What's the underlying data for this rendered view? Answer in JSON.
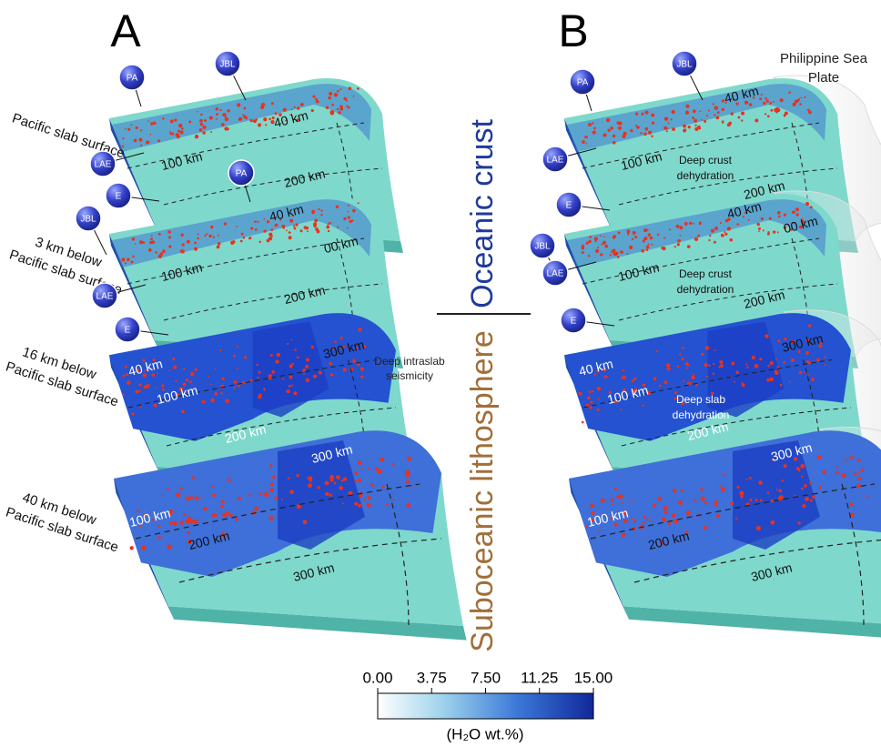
{
  "panels": [
    {
      "label": "A",
      "slabs": [
        {
          "side_label": [
            "Pacific slab surface"
          ],
          "markers": [
            "PA",
            "JBL",
            "LAE",
            "E"
          ],
          "depths": [
            "40 km",
            "100 km",
            "200 km",
            "00 km"
          ]
        },
        {
          "side_label": [
            "3 km below",
            "Pacific slab surface"
          ],
          "markers": [
            "PA",
            "JBL",
            "LAE",
            "E"
          ],
          "depths": [
            "40 km",
            "100 km",
            "200 km",
            "300 km"
          ]
        },
        {
          "side_label": [
            "16 km below",
            "Pacific slab surface"
          ],
          "depths": [
            "40 km",
            "100 km",
            "200 km",
            "300 km"
          ]
        },
        {
          "side_label": [
            "40 km below",
            "Pacific slab surface"
          ],
          "depths": [
            "100 km",
            "200 km",
            "300 km"
          ]
        }
      ],
      "annotations": [
        {
          "lines": [
            "Deep intraslab",
            "seismicity"
          ]
        }
      ]
    },
    {
      "label": "B",
      "slabs": [
        {
          "markers": [
            "PA",
            "JBL",
            "LAE",
            "E"
          ],
          "depths": [
            "40 km",
            "100 km",
            "200 km",
            "00 km"
          ],
          "note": [
            "Deep crust",
            "dehydration"
          ]
        },
        {
          "markers": [
            "JBL",
            "LAE",
            "E"
          ],
          "depths": [
            "40 km",
            "100 km",
            "200 km",
            "300 km"
          ],
          "note": [
            "Deep crust",
            "dehydration"
          ]
        },
        {
          "depths": [
            "40 km",
            "100 km",
            "200 km",
            "300 km"
          ],
          "note": [
            "Deep slab",
            "dehydration"
          ]
        },
        {
          "depths": [
            "100 km",
            "200 km",
            "300 km"
          ]
        }
      ],
      "annotations": [
        {
          "lines": [
            "Philippine Sea",
            "Plate"
          ]
        }
      ]
    }
  ],
  "center": {
    "upper": "Oceanic crust",
    "lower": "Suboceanic lithosphere"
  },
  "colorbar": {
    "title": "(H₂O wt.%)",
    "lim": [
      0,
      15
    ],
    "ticks": [
      {
        "value": 0,
        "label": "0.00"
      },
      3.75,
      {
        "value": 7.5,
        "label": "7.50"
      },
      11.25,
      {
        "value": 15,
        "label": "15.00"
      }
    ]
  }
}
